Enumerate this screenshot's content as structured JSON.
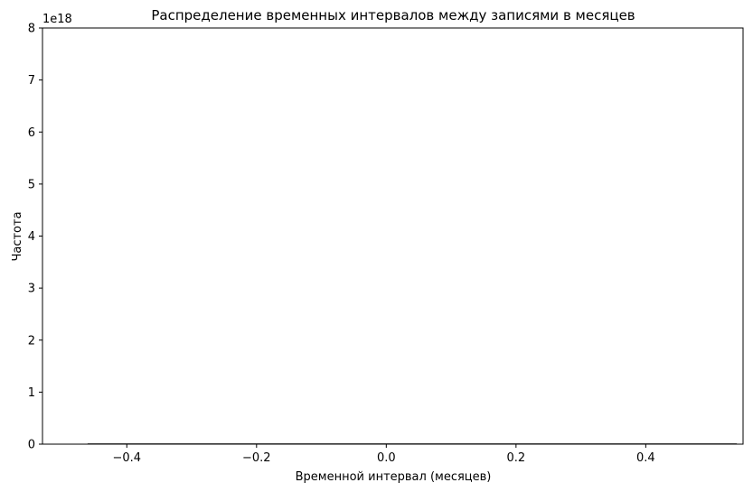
{
  "chart_data": {
    "type": "bar",
    "title": "Распределение временных интервалов между записями в месяцев",
    "xlabel": "Временной интервал (месяцев)",
    "ylabel": "Частота",
    "y_offset_text": "1e18",
    "xlim": [
      -0.53,
      0.55
    ],
    "ylim": [
      0,
      8
    ],
    "x_ticks": [
      -0.4,
      -0.2,
      0.0,
      0.2,
      0.4
    ],
    "x_tick_labels": [
      "−0.4",
      "−0.2",
      "0.0",
      "0.2",
      "0.4"
    ],
    "y_ticks": [
      0,
      1,
      2,
      3,
      4,
      5,
      6,
      7,
      8
    ],
    "y_tick_labels": [
      "0",
      "1",
      "2",
      "3",
      "4",
      "5",
      "6",
      "7",
      "8"
    ],
    "bins": [
      {
        "x0": -0.46,
        "x1": 0.54,
        "value": 0
      }
    ],
    "bar_color": "#1f77b4",
    "edge_color": "#000000",
    "grid": false,
    "legend": "none"
  }
}
